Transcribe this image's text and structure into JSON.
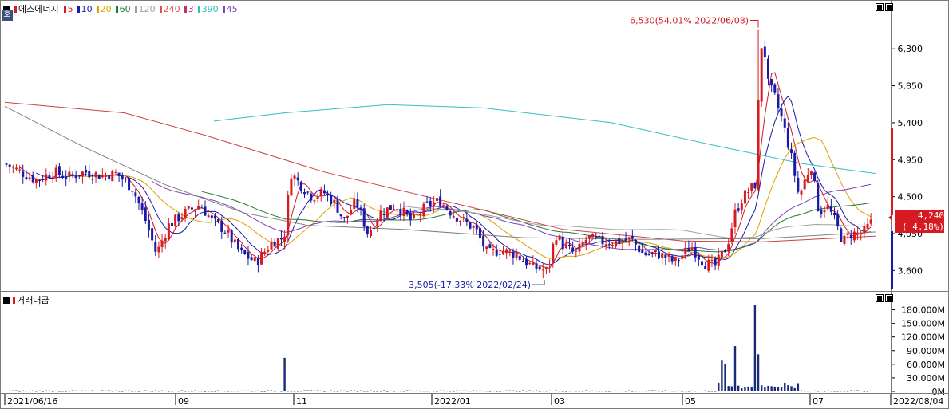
{
  "stock_name": "에스에너지",
  "badge_label": "호",
  "ma_legend": [
    {
      "label": "5",
      "color": "#d71921"
    },
    {
      "label": "10",
      "color": "#1a1aa8"
    },
    {
      "label": "20",
      "color": "#e0a000"
    },
    {
      "label": "60",
      "color": "#1f7a2e"
    },
    {
      "label": "120",
      "color": "#a0a0a0"
    },
    {
      "label": "240",
      "color": "#e05050"
    },
    {
      "label": "3",
      "color": "#c03060"
    },
    {
      "label": "390",
      "color": "#30c0c0"
    },
    {
      "label": "45",
      "color": "#8040c0"
    }
  ],
  "current_price": "4,240",
  "current_change": "( 4.18%)",
  "annotations": {
    "high": "6,530(54.01% 2022/06/08)",
    "low": "3,505(-17.33% 2022/02/24)"
  },
  "volume_pane_title": "거래대금",
  "chart_data": [
    {
      "type": "candlestick",
      "title": "에스에너지",
      "price_ticks": [
        "6,300",
        "5,850",
        "5,400",
        "4,950",
        "4,500",
        "4,050",
        "3,600"
      ],
      "price_tick_values": [
        6300,
        5850,
        5400,
        4950,
        4500,
        4050,
        3600
      ],
      "ylim": [
        3380,
        6700
      ],
      "x_labels": [
        "2021/06/16",
        "09",
        "11",
        "2022/01",
        "03",
        "05",
        "07",
        "2022/08/04"
      ],
      "high": {
        "value": 6530,
        "date": "2022/06/08"
      },
      "low": {
        "value": 3505,
        "date": "2022/02/24"
      },
      "last": 4240,
      "moving_averages": [
        "5",
        "10",
        "20",
        "60",
        "120",
        "240",
        "3",
        "390",
        "45"
      ],
      "grid": false
    },
    {
      "type": "bar",
      "title": "거래대금",
      "volume_ticks": [
        "180,000M",
        "150,000M",
        "120,000M",
        "90,000M",
        "60,000M",
        "30,000M",
        "0M"
      ],
      "volume_tick_values": [
        180000,
        150000,
        120000,
        90000,
        60000,
        30000,
        0
      ],
      "ylim": [
        0,
        195000
      ]
    }
  ]
}
